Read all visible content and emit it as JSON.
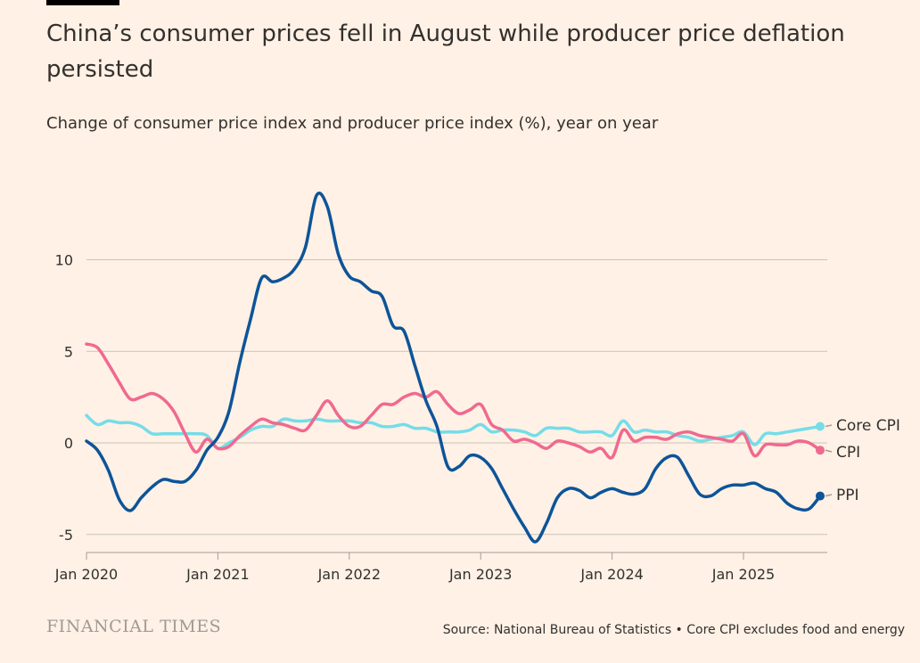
{
  "title": "China’s consumer prices fell in August while producer price deflation persisted",
  "subtitle": "Change of consumer price index and producer price index (%), year on year",
  "brand": "FINANCIAL TIMES",
  "source": "Source: National Bureau of Statistics • Core CPI excludes food and energy",
  "chart_data": {
    "type": "line",
    "title": "China’s consumer prices fell in August while producer price deflation persisted",
    "ylabel": "Change of consumer price index and producer price index (%), year on year",
    "x_start": "2020-01",
    "x_end": "2025-08",
    "frequency": "monthly",
    "xticks": [
      "Jan 2020",
      "Jan 2021",
      "Jan 2022",
      "Jan 2023",
      "Jan 2024",
      "Jan 2025"
    ],
    "yticks": [
      10,
      5,
      0,
      -5
    ],
    "ylim": [
      -6,
      14
    ],
    "grid": true,
    "legend": "direct labels at line ends, right",
    "series": [
      {
        "name": "Core CPI",
        "color": "#74dde8",
        "values": [
          1.5,
          1.0,
          1.2,
          1.1,
          1.1,
          0.9,
          0.5,
          0.5,
          0.5,
          0.5,
          0.5,
          0.4,
          -0.3,
          0.0,
          0.3,
          0.7,
          0.9,
          0.9,
          1.3,
          1.2,
          1.2,
          1.3,
          1.2,
          1.2,
          1.2,
          1.1,
          1.1,
          0.9,
          0.9,
          1.0,
          0.8,
          0.8,
          0.6,
          0.6,
          0.6,
          0.7,
          1.0,
          0.6,
          0.7,
          0.7,
          0.6,
          0.4,
          0.8,
          0.8,
          0.8,
          0.6,
          0.6,
          0.6,
          0.4,
          1.2,
          0.6,
          0.7,
          0.6,
          0.6,
          0.4,
          0.3,
          0.1,
          0.2,
          0.3,
          0.4,
          0.6,
          -0.1,
          0.5,
          0.5,
          0.6,
          0.7,
          0.8,
          0.9
        ]
      },
      {
        "name": "CPI",
        "color": "#f0698f",
        "values": [
          5.4,
          5.2,
          4.3,
          3.3,
          2.4,
          2.5,
          2.7,
          2.4,
          1.7,
          0.5,
          -0.5,
          0.2,
          -0.3,
          -0.2,
          0.4,
          0.9,
          1.3,
          1.1,
          1.0,
          0.8,
          0.7,
          1.5,
          2.3,
          1.5,
          0.9,
          0.9,
          1.5,
          2.1,
          2.1,
          2.5,
          2.7,
          2.5,
          2.8,
          2.1,
          1.6,
          1.8,
          2.1,
          1.0,
          0.7,
          0.1,
          0.2,
          0.0,
          -0.3,
          0.1,
          0.0,
          -0.2,
          -0.5,
          -0.3,
          -0.8,
          0.7,
          0.1,
          0.3,
          0.3,
          0.2,
          0.5,
          0.6,
          0.4,
          0.3,
          0.2,
          0.1,
          0.5,
          -0.7,
          -0.1,
          -0.1,
          -0.1,
          0.1,
          0.0,
          -0.4
        ]
      },
      {
        "name": "PPI",
        "color": "#0d5499",
        "values": [
          0.1,
          -0.4,
          -1.5,
          -3.1,
          -3.7,
          -3.0,
          -2.4,
          -2.0,
          -2.1,
          -2.1,
          -1.5,
          -0.4,
          0.3,
          1.7,
          4.4,
          6.8,
          9.0,
          8.8,
          9.0,
          9.5,
          10.7,
          13.5,
          12.9,
          10.3,
          9.1,
          8.8,
          8.3,
          8.0,
          6.4,
          6.1,
          4.2,
          2.3,
          0.9,
          -1.3,
          -1.3,
          -0.7,
          -0.8,
          -1.4,
          -2.5,
          -3.6,
          -4.6,
          -5.4,
          -4.4,
          -3.0,
          -2.5,
          -2.6,
          -3.0,
          -2.7,
          -2.5,
          -2.7,
          -2.8,
          -2.5,
          -1.4,
          -0.8,
          -0.8,
          -1.8,
          -2.8,
          -2.9,
          -2.5,
          -2.3,
          -2.3,
          -2.2,
          -2.5,
          -2.7,
          -3.3,
          -3.6,
          -3.6,
          -2.9
        ]
      }
    ]
  }
}
